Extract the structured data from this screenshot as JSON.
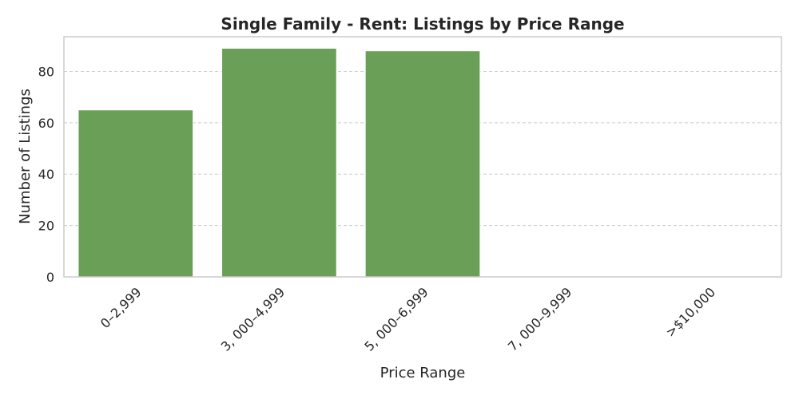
{
  "chart_data": {
    "type": "bar",
    "title": "Single Family - Rent: Listings by Price Range",
    "xlabel": "Price Range",
    "ylabel": "Number of Listings",
    "categories": [
      "0–2,999",
      "3, 000–4,999",
      "5, 000–6,999",
      "7, 000–9,999",
      ">$10,000"
    ],
    "values": [
      65,
      89,
      88,
      0,
      0
    ],
    "ylim": [
      0,
      93.5
    ],
    "yticks": [
      0,
      20,
      40,
      60,
      80
    ],
    "grid": true,
    "bar_color": "#6a9f58",
    "x_tick_rotation": -45
  }
}
